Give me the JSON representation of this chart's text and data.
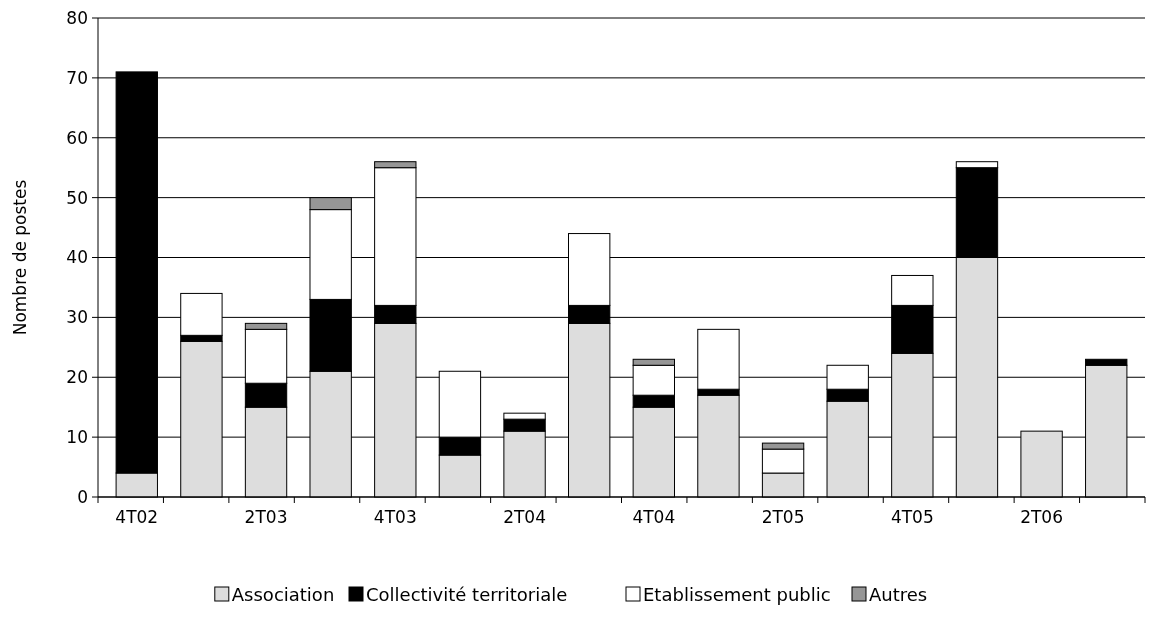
{
  "chart_data": {
    "type": "bar",
    "stacked": true,
    "ylabel": "Nombre de postes",
    "categories": [
      "4T02",
      null,
      "2T03",
      null,
      "4T03",
      null,
      "2T04",
      null,
      "4T04",
      null,
      "2T05",
      null,
      "4T05",
      null,
      "2T06",
      null
    ],
    "series": [
      {
        "name": "Association",
        "color": "#dddddd",
        "values": [
          4,
          26,
          15,
          21,
          29,
          7,
          11,
          29,
          15,
          17,
          4,
          16,
          24,
          40,
          11,
          22
        ]
      },
      {
        "name": "Collectivité territoriale",
        "color": "#000000",
        "values": [
          67,
          1,
          4,
          12,
          3,
          3,
          2,
          3,
          2,
          1,
          0,
          2,
          8,
          15,
          0,
          1
        ]
      },
      {
        "name": "Etablissement public",
        "color": "#ffffff",
        "values": [
          0,
          7,
          9,
          15,
          23,
          11,
          1,
          12,
          5,
          10,
          4,
          4,
          5,
          1,
          0,
          0
        ]
      },
      {
        "name": "Autres",
        "color": "#969696",
        "values": [
          0,
          0,
          1,
          2,
          1,
          0,
          0,
          0,
          1,
          0,
          1,
          0,
          0,
          0,
          0,
          0
        ]
      }
    ],
    "ylim": [
      0,
      80
    ],
    "yticks": [
      0,
      10,
      20,
      30,
      40,
      50,
      60,
      70,
      80
    ],
    "grid": "y",
    "legend": "bottom"
  }
}
